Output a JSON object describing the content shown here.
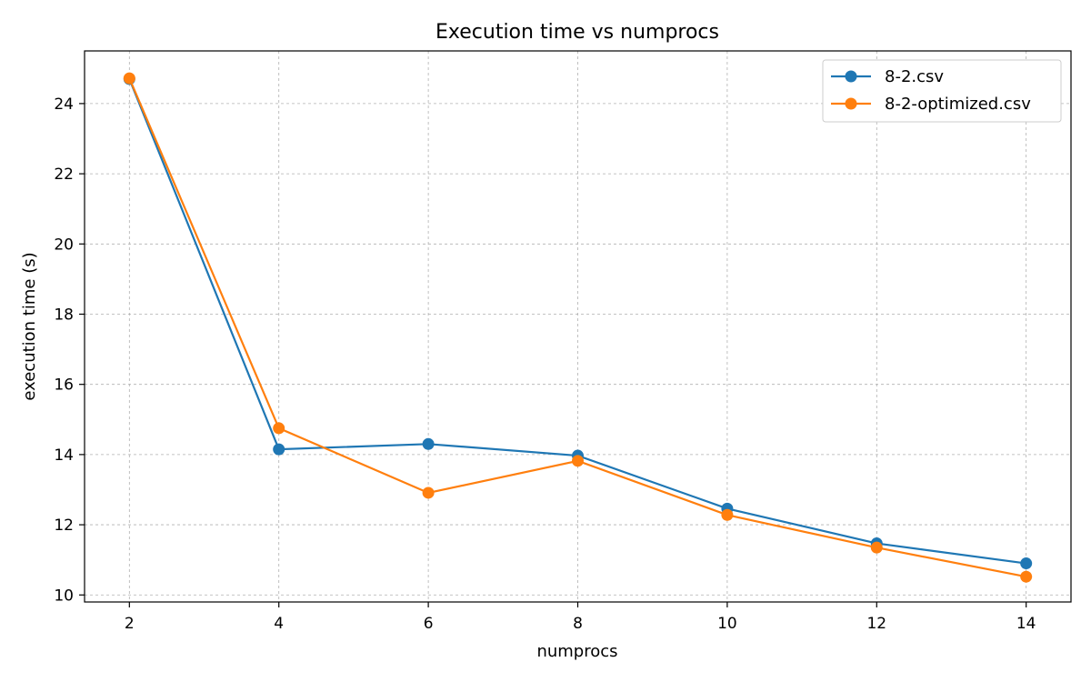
{
  "chart_data": {
    "type": "line",
    "title": "Execution time vs numprocs",
    "xlabel": "numprocs",
    "ylabel": "execution time (s)",
    "x": [
      2,
      4,
      6,
      8,
      10,
      12,
      14
    ],
    "xlim": [
      1.4,
      14.6
    ],
    "ylim": [
      9.8,
      25.5
    ],
    "xticks": [
      "2",
      "4",
      "6",
      "8",
      "10",
      "12",
      "14"
    ],
    "yticks": [
      "10",
      "12",
      "14",
      "16",
      "18",
      "20",
      "22",
      "24"
    ],
    "grid": true,
    "legend_position": "top-right",
    "series": [
      {
        "name": "8-2.csv",
        "color": "#1f77b4",
        "marker": "circle",
        "values": [
          24.7,
          14.15,
          14.3,
          13.97,
          12.46,
          11.47,
          10.9
        ]
      },
      {
        "name": "8-2-optimized.csv",
        "color": "#ff7f0e",
        "marker": "circle",
        "values": [
          24.72,
          14.75,
          12.91,
          13.82,
          12.28,
          11.35,
          10.52
        ]
      }
    ]
  }
}
